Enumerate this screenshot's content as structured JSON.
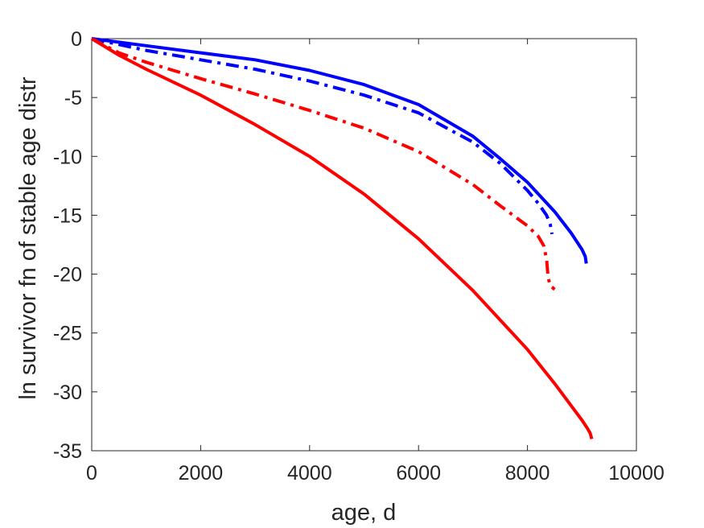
{
  "chart_data": {
    "type": "line",
    "title": "",
    "xlabel": "age, d",
    "ylabel": "ln survivor fn of stable age distr",
    "xlim": [
      0,
      10000
    ],
    "ylim": [
      -35,
      0
    ],
    "xticks": [
      0,
      2000,
      4000,
      6000,
      8000,
      10000
    ],
    "yticks": [
      0,
      -5,
      -10,
      -15,
      -20,
      -25,
      -30,
      -35
    ],
    "xtick_labels": [
      "0",
      "2000",
      "4000",
      "6000",
      "8000",
      "10000"
    ],
    "ytick_labels": [
      "0",
      "-5",
      "-10",
      "-15",
      "-20",
      "-25",
      "-30",
      "-35"
    ],
    "grid": false,
    "legend": "none",
    "series": [
      {
        "color": "#0000ff",
        "style": "solid",
        "x": [
          0,
          1000,
          2000,
          3000,
          4000,
          5000,
          6000,
          7000,
          7500,
          8000,
          8500,
          8800,
          9000,
          9060,
          9080
        ],
        "y": [
          0,
          -0.6,
          -1.2,
          -1.8,
          -2.7,
          -3.9,
          -5.6,
          -8.3,
          -10.2,
          -12.2,
          -14.7,
          -16.5,
          -17.9,
          -18.5,
          -19.1
        ]
      },
      {
        "color": "#0000ff",
        "style": "dashdot",
        "x": [
          0,
          1000,
          2000,
          3000,
          4000,
          5000,
          6000,
          7000,
          7500,
          8000,
          8200,
          8350,
          8420,
          8450
        ],
        "y": [
          0,
          -1.0,
          -1.8,
          -2.6,
          -3.6,
          -4.8,
          -6.3,
          -8.8,
          -10.6,
          -12.9,
          -14.0,
          -15.0,
          -15.8,
          -16.6
        ]
      },
      {
        "color": "#ff0000",
        "style": "dashdot",
        "x": [
          0,
          500,
          1000,
          2000,
          3000,
          4000,
          5000,
          6000,
          7000,
          7500,
          8000,
          8200,
          8300,
          8350,
          8380,
          8420,
          8450,
          8500
        ],
        "y": [
          0,
          -1.2,
          -2.0,
          -3.4,
          -4.7,
          -6.1,
          -7.6,
          -9.6,
          -12.4,
          -14.2,
          -15.9,
          -16.8,
          -17.6,
          -18.7,
          -20.3,
          -21.0,
          -21.1,
          -21.3
        ]
      },
      {
        "color": "#ff0000",
        "style": "solid",
        "x": [
          0,
          500,
          1000,
          2000,
          3000,
          4000,
          5000,
          6000,
          7000,
          8000,
          8500,
          9000,
          9100,
          9150,
          9180
        ],
        "y": [
          0,
          -1.4,
          -2.6,
          -4.8,
          -7.3,
          -10.0,
          -13.2,
          -17.0,
          -21.4,
          -26.4,
          -29.3,
          -32.4,
          -33.1,
          -33.5,
          -34.0
        ]
      }
    ]
  }
}
